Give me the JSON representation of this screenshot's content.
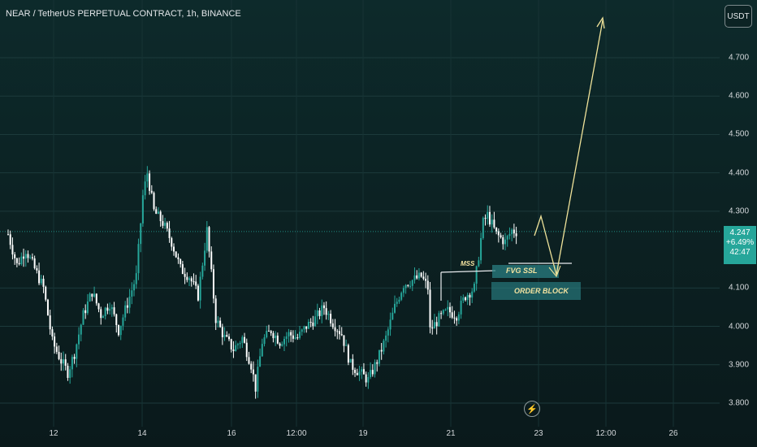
{
  "header": {
    "title": "NEAR / TetherUS PERPETUAL CONTRACT, 1h, BINANCE"
  },
  "currency_label": "USDT",
  "last_price": {
    "price": "4.247",
    "change": "+6.49%",
    "countdown": "42:47"
  },
  "annotations": {
    "mss": "MSS",
    "fvg": "FVG  SSL",
    "order_block": "ORDER BLOCK"
  },
  "icons": {
    "bolt": "lightning-icon"
  },
  "colors": {
    "up": "#26a69a",
    "down": "#ffffff",
    "annotation": "#f0e39a",
    "box": "#2a7f82"
  },
  "chart_data": {
    "type": "candlestick",
    "title": "NEAR / TetherUS PERPETUAL CONTRACT, 1h, BINANCE",
    "y_ticks": [
      "4.700",
      "4.600",
      "4.500",
      "4.400",
      "4.300",
      "4.100",
      "4.000",
      "3.900",
      "3.800"
    ],
    "x_ticks": [
      "12",
      "14",
      "16",
      "12:00",
      "19",
      "21",
      "23",
      "12:00",
      "26"
    ],
    "ylim": [
      3.77,
      4.78
    ],
    "last_price": 4.247,
    "price_path": [
      [
        0,
        4.24
      ],
      [
        4,
        4.16
      ],
      [
        8,
        4.2
      ],
      [
        12,
        4.15
      ],
      [
        16,
        4.1
      ],
      [
        20,
        3.96
      ],
      [
        24,
        3.91
      ],
      [
        27,
        3.88
      ],
      [
        30,
        3.93
      ],
      [
        34,
        4.03
      ],
      [
        38,
        4.09
      ],
      [
        42,
        4.03
      ],
      [
        46,
        4.06
      ],
      [
        50,
        3.99
      ],
      [
        54,
        4.06
      ],
      [
        58,
        4.13
      ],
      [
        61,
        4.34
      ],
      [
        63,
        4.4
      ],
      [
        66,
        4.3
      ],
      [
        70,
        4.27
      ],
      [
        74,
        4.22
      ],
      [
        78,
        4.15
      ],
      [
        82,
        4.13
      ],
      [
        86,
        4.08
      ],
      [
        90,
        4.25
      ],
      [
        94,
        4.02
      ],
      [
        98,
        3.97
      ],
      [
        102,
        3.94
      ],
      [
        106,
        3.97
      ],
      [
        110,
        3.9
      ],
      [
        112,
        3.84
      ],
      [
        115,
        3.96
      ],
      [
        119,
        3.99
      ],
      [
        123,
        3.96
      ],
      [
        127,
        3.98
      ],
      [
        131,
        3.97
      ],
      [
        135,
        4.0
      ],
      [
        139,
        4.02
      ],
      [
        143,
        4.05
      ],
      [
        147,
        4.01
      ],
      [
        151,
        3.98
      ],
      [
        155,
        3.9
      ],
      [
        159,
        3.88
      ],
      [
        163,
        3.86
      ],
      [
        167,
        3.91
      ],
      [
        171,
        3.97
      ],
      [
        175,
        4.05
      ],
      [
        179,
        4.11
      ],
      [
        183,
        4.12
      ],
      [
        187,
        4.13
      ],
      [
        190,
        4.1
      ],
      [
        191,
        3.99
      ],
      [
        195,
        4.02
      ],
      [
        199,
        4.04
      ],
      [
        203,
        4.03
      ],
      [
        207,
        4.08
      ],
      [
        211,
        4.1
      ],
      [
        215,
        4.27
      ],
      [
        217,
        4.29
      ],
      [
        221,
        4.24
      ],
      [
        225,
        4.22
      ],
      [
        228,
        4.25
      ],
      [
        230,
        4.247
      ]
    ]
  }
}
